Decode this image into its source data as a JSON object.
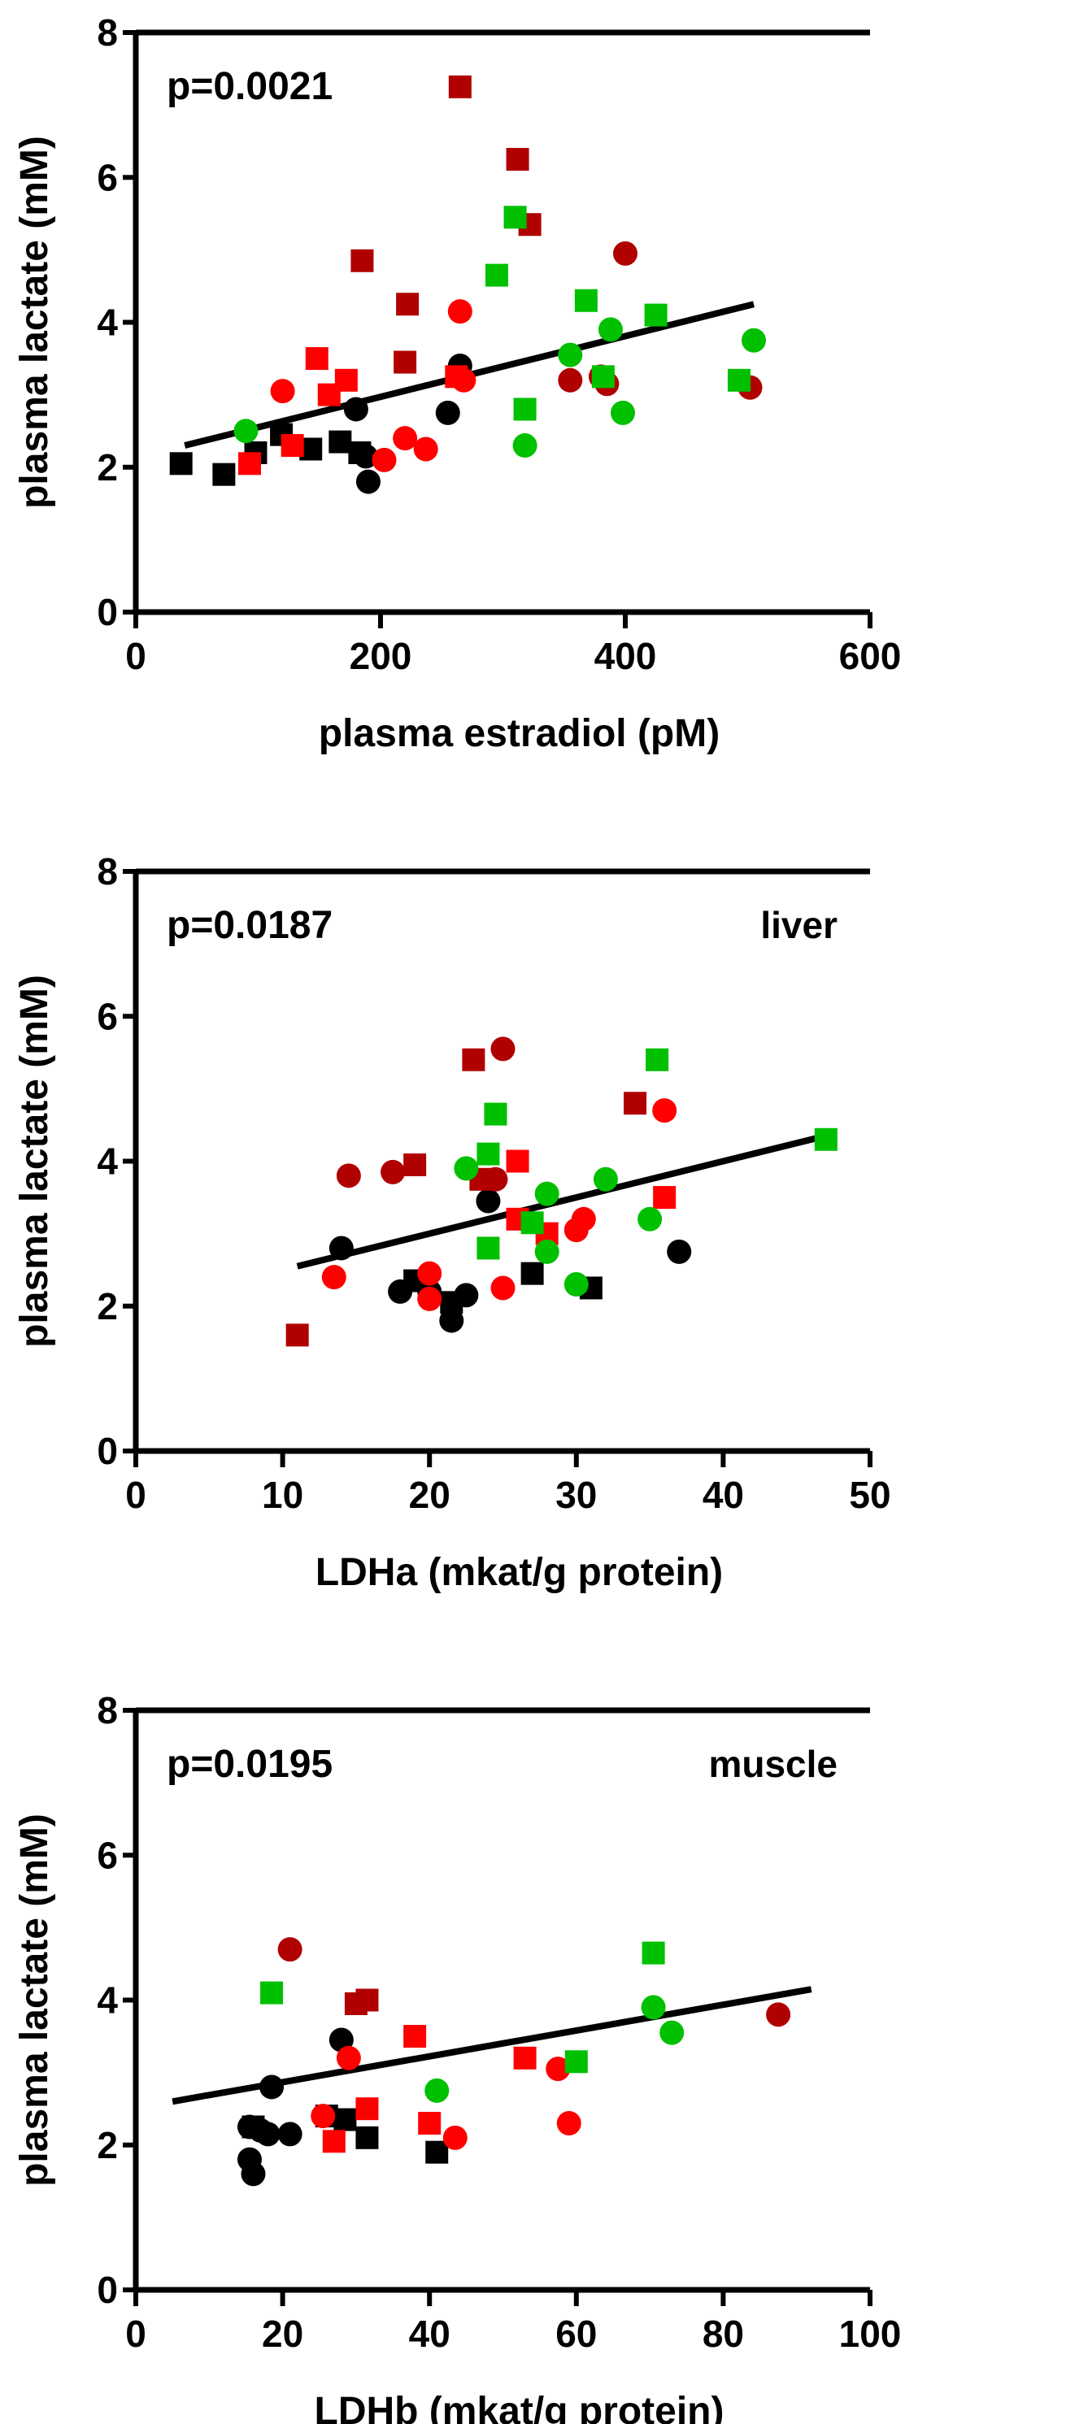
{
  "colors": {
    "black": "#000000",
    "red": "#ff0000",
    "darkred": "#b00000",
    "green": "#00c000"
  },
  "chart_data": [
    {
      "type": "scatter",
      "annotation": "p=0.0021",
      "tag": "",
      "xlabel": "plasma estradiol (pM)",
      "ylabel": "plasma lactate (mM)",
      "xlim": [
        0,
        600
      ],
      "ylim": [
        0,
        8
      ],
      "xticks": [
        "0",
        "200",
        "400",
        "600"
      ],
      "xtick_values": [
        0,
        200,
        400,
        600
      ],
      "yticks": [
        "0",
        "2",
        "4",
        "6",
        "8"
      ],
      "ytick_values": [
        0,
        2,
        4,
        6,
        8
      ],
      "regression": [
        [
          40,
          2.3
        ],
        [
          505,
          4.25
        ]
      ],
      "series": [
        {
          "name": "black-square",
          "color": "black",
          "shape": "square",
          "points": [
            [
              37,
              2.05
            ],
            [
              72,
              1.9
            ],
            [
              98,
              2.2
            ],
            [
              119,
              2.45
            ],
            [
              143,
              2.25
            ],
            [
              167,
              2.35
            ],
            [
              183,
              2.2
            ]
          ]
        },
        {
          "name": "black-circle",
          "color": "black",
          "shape": "circle",
          "points": [
            [
              180,
              2.8
            ],
            [
              188,
              2.15
            ],
            [
              190,
              1.8
            ],
            [
              255,
              2.75
            ],
            [
              265,
              3.4
            ]
          ]
        },
        {
          "name": "red-square",
          "color": "red",
          "shape": "square",
          "points": [
            [
              93,
              2.05
            ],
            [
              128,
              2.3
            ],
            [
              148,
              3.5
            ],
            [
              158,
              3.0
            ],
            [
              172,
              3.2
            ],
            [
              262,
              3.25
            ]
          ]
        },
        {
          "name": "red-circle",
          "color": "red",
          "shape": "circle",
          "points": [
            [
              120,
              3.05
            ],
            [
              203,
              2.1
            ],
            [
              220,
              2.4
            ],
            [
              237,
              2.25
            ],
            [
              265,
              4.15
            ],
            [
              268,
              3.2
            ]
          ]
        },
        {
          "name": "darkred-square",
          "color": "darkred",
          "shape": "square",
          "points": [
            [
              185,
              4.85
            ],
            [
              222,
              4.25
            ],
            [
              220,
              3.45
            ],
            [
              265,
              7.25
            ],
            [
              312,
              6.25
            ],
            [
              322,
              5.35
            ]
          ]
        },
        {
          "name": "darkred-circle",
          "color": "darkred",
          "shape": "circle",
          "points": [
            [
              355,
              3.2
            ],
            [
              380,
              3.25
            ],
            [
              385,
              3.15
            ],
            [
              400,
              4.95
            ],
            [
              502,
              3.1
            ]
          ]
        },
        {
          "name": "green-square",
          "color": "green",
          "shape": "square",
          "points": [
            [
              295,
              4.65
            ],
            [
              310,
              5.45
            ],
            [
              318,
              2.8
            ],
            [
              368,
              4.3
            ],
            [
              382,
              3.25
            ],
            [
              425,
              4.1
            ],
            [
              493,
              3.2
            ]
          ]
        },
        {
          "name": "green-circle",
          "color": "green",
          "shape": "circle",
          "points": [
            [
              90,
              2.5
            ],
            [
              318,
              2.3
            ],
            [
              355,
              3.55
            ],
            [
              388,
              3.9
            ],
            [
              398,
              2.75
            ],
            [
              505,
              3.75
            ]
          ]
        }
      ]
    },
    {
      "type": "scatter",
      "annotation": "p=0.0187",
      "tag": "liver",
      "xlabel": "LDHa (mkat/g protein)",
      "ylabel": "plasma lactate (mM)",
      "xlim": [
        0,
        50
      ],
      "ylim": [
        0,
        8
      ],
      "xticks": [
        "0",
        "10",
        "20",
        "30",
        "40",
        "50"
      ],
      "xtick_values": [
        0,
        10,
        20,
        30,
        40,
        50
      ],
      "yticks": [
        "0",
        "2",
        "4",
        "6",
        "8"
      ],
      "ytick_values": [
        0,
        2,
        4,
        6,
        8
      ],
      "regression": [
        [
          11,
          2.55
        ],
        [
          47,
          4.35
        ]
      ],
      "series": [
        {
          "name": "black-circle",
          "color": "black",
          "shape": "circle",
          "points": [
            [
              14,
              2.8
            ],
            [
              18,
              2.2
            ],
            [
              20,
              2.2
            ],
            [
              21.5,
              1.8
            ],
            [
              22.5,
              2.15
            ],
            [
              24,
              3.45
            ],
            [
              37,
              2.75
            ]
          ]
        },
        {
          "name": "black-square",
          "color": "black",
          "shape": "square",
          "points": [
            [
              19,
              2.35
            ],
            [
              21.5,
              2.05
            ],
            [
              27,
              2.45
            ],
            [
              31,
              2.25
            ]
          ]
        },
        {
          "name": "red-square",
          "color": "red",
          "shape": "square",
          "points": [
            [
              26,
              4.0
            ],
            [
              26,
              3.2
            ],
            [
              28,
              3.0
            ],
            [
              36,
              3.5
            ]
          ]
        },
        {
          "name": "red-circle",
          "color": "red",
          "shape": "circle",
          "points": [
            [
              13.5,
              2.4
            ],
            [
              20,
              2.1
            ],
            [
              20,
              2.45
            ],
            [
              25,
              2.25
            ],
            [
              30,
              3.05
            ],
            [
              30.5,
              3.2
            ],
            [
              36,
              4.7
            ]
          ]
        },
        {
          "name": "darkred-square",
          "color": "darkred",
          "shape": "square",
          "points": [
            [
              11,
              1.6
            ],
            [
              19,
              3.95
            ],
            [
              23,
              5.4
            ],
            [
              23.5,
              3.75
            ],
            [
              34,
              4.8
            ]
          ]
        },
        {
          "name": "darkred-circle",
          "color": "darkred",
          "shape": "circle",
          "points": [
            [
              14.5,
              3.8
            ],
            [
              17.5,
              3.85
            ],
            [
              24.5,
              3.75
            ],
            [
              25,
              5.55
            ]
          ]
        },
        {
          "name": "green-square",
          "color": "green",
          "shape": "square",
          "points": [
            [
              24,
              2.8
            ],
            [
              24,
              4.1
            ],
            [
              24.5,
              4.65
            ],
            [
              27,
              3.15
            ],
            [
              35.5,
              5.4
            ],
            [
              47,
              4.3
            ]
          ]
        },
        {
          "name": "green-circle",
          "color": "green",
          "shape": "circle",
          "points": [
            [
              22.5,
              3.9
            ],
            [
              28,
              3.55
            ],
            [
              28,
              2.75
            ],
            [
              30,
              2.3
            ],
            [
              32,
              3.75
            ],
            [
              35,
              3.2
            ]
          ]
        }
      ]
    },
    {
      "type": "scatter",
      "annotation": "p=0.0195",
      "tag": "muscle",
      "xlabel": "LDHb (mkat/g protein)",
      "ylabel": "plasma lactate (mM)",
      "xlim": [
        0,
        100
      ],
      "ylim": [
        0,
        8
      ],
      "xticks": [
        "0",
        "20",
        "40",
        "60",
        "80",
        "100"
      ],
      "xtick_values": [
        0,
        20,
        40,
        60,
        80,
        100
      ],
      "yticks": [
        "0",
        "2",
        "4",
        "6",
        "8"
      ],
      "ytick_values": [
        0,
        2,
        4,
        6,
        8
      ],
      "regression": [
        [
          5,
          2.6
        ],
        [
          92,
          4.15
        ]
      ],
      "series": [
        {
          "name": "black-circle",
          "color": "black",
          "shape": "circle",
          "points": [
            [
              15.5,
              2.25
            ],
            [
              15.5,
              1.8
            ],
            [
              16,
              1.6
            ],
            [
              17,
              2.2
            ],
            [
              18,
              2.15
            ],
            [
              18.5,
              2.8
            ],
            [
              21,
              2.15
            ],
            [
              28,
              3.45
            ]
          ]
        },
        {
          "name": "black-square",
          "color": "black",
          "shape": "square",
          "points": [
            [
              16,
              2.25
            ],
            [
              26,
              2.4
            ],
            [
              28.5,
              2.35
            ],
            [
              31.5,
              2.1
            ],
            [
              41,
              1.9
            ]
          ]
        },
        {
          "name": "red-square",
          "color": "red",
          "shape": "square",
          "points": [
            [
              27,
              2.05
            ],
            [
              31.5,
              2.5
            ],
            [
              38,
              3.5
            ],
            [
              40,
              2.3
            ],
            [
              53,
              3.2
            ]
          ]
        },
        {
          "name": "red-circle",
          "color": "red",
          "shape": "circle",
          "points": [
            [
              25.5,
              2.4
            ],
            [
              29,
              3.2
            ],
            [
              43.5,
              2.1
            ],
            [
              57.5,
              3.05
            ],
            [
              59,
              2.3
            ]
          ]
        },
        {
          "name": "darkred-square",
          "color": "darkred",
          "shape": "square",
          "points": [
            [
              30,
              3.95
            ],
            [
              31.5,
              4.0
            ]
          ]
        },
        {
          "name": "darkred-circle",
          "color": "darkred",
          "shape": "circle",
          "points": [
            [
              21,
              4.7
            ],
            [
              87.5,
              3.8
            ]
          ]
        },
        {
          "name": "green-square",
          "color": "green",
          "shape": "square",
          "points": [
            [
              18.5,
              4.1
            ],
            [
              60,
              3.15
            ],
            [
              70.5,
              4.65
            ]
          ]
        },
        {
          "name": "green-circle",
          "color": "green",
          "shape": "circle",
          "points": [
            [
              41,
              2.75
            ],
            [
              70.5,
              3.9
            ],
            [
              73,
              3.55
            ]
          ]
        }
      ]
    }
  ]
}
